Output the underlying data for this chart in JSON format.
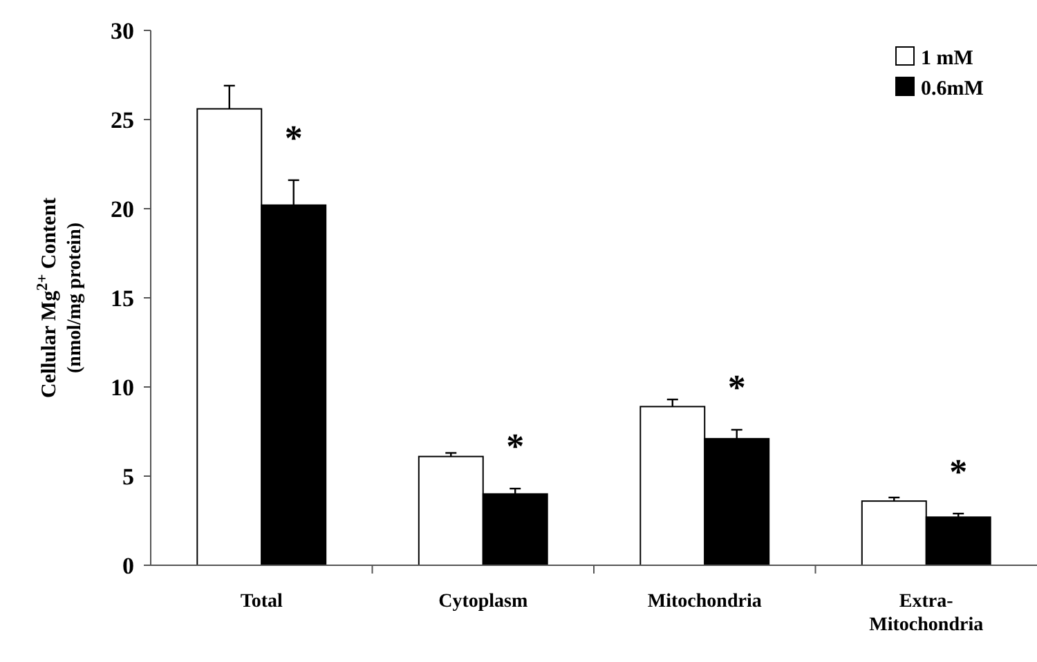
{
  "chart_data": {
    "type": "bar",
    "ylabel": "Cellular Mg$^{2+}$ Content\n(nmol/mg protein)",
    "categories": [
      "Total",
      "Cytoplasm",
      "Mitochondria",
      "Extra-\nMitochondria"
    ],
    "series": [
      {
        "name": "1 mM",
        "color": "#ffffff",
        "values": [
          25.6,
          6.1,
          8.9,
          3.6
        ],
        "errors": [
          1.3,
          0.2,
          0.4,
          0.2
        ]
      },
      {
        "name": "0.6mM",
        "color": "#000000",
        "values": [
          20.2,
          4.0,
          7.1,
          2.7
        ],
        "errors": [
          1.4,
          0.3,
          0.5,
          0.2
        ]
      }
    ],
    "ylim": [
      0,
      30
    ],
    "yticks": [
      0,
      5,
      10,
      15,
      20,
      25,
      30
    ],
    "grid": false,
    "legend": "top right",
    "annotations": [
      "*",
      "*",
      "*",
      "*"
    ]
  }
}
